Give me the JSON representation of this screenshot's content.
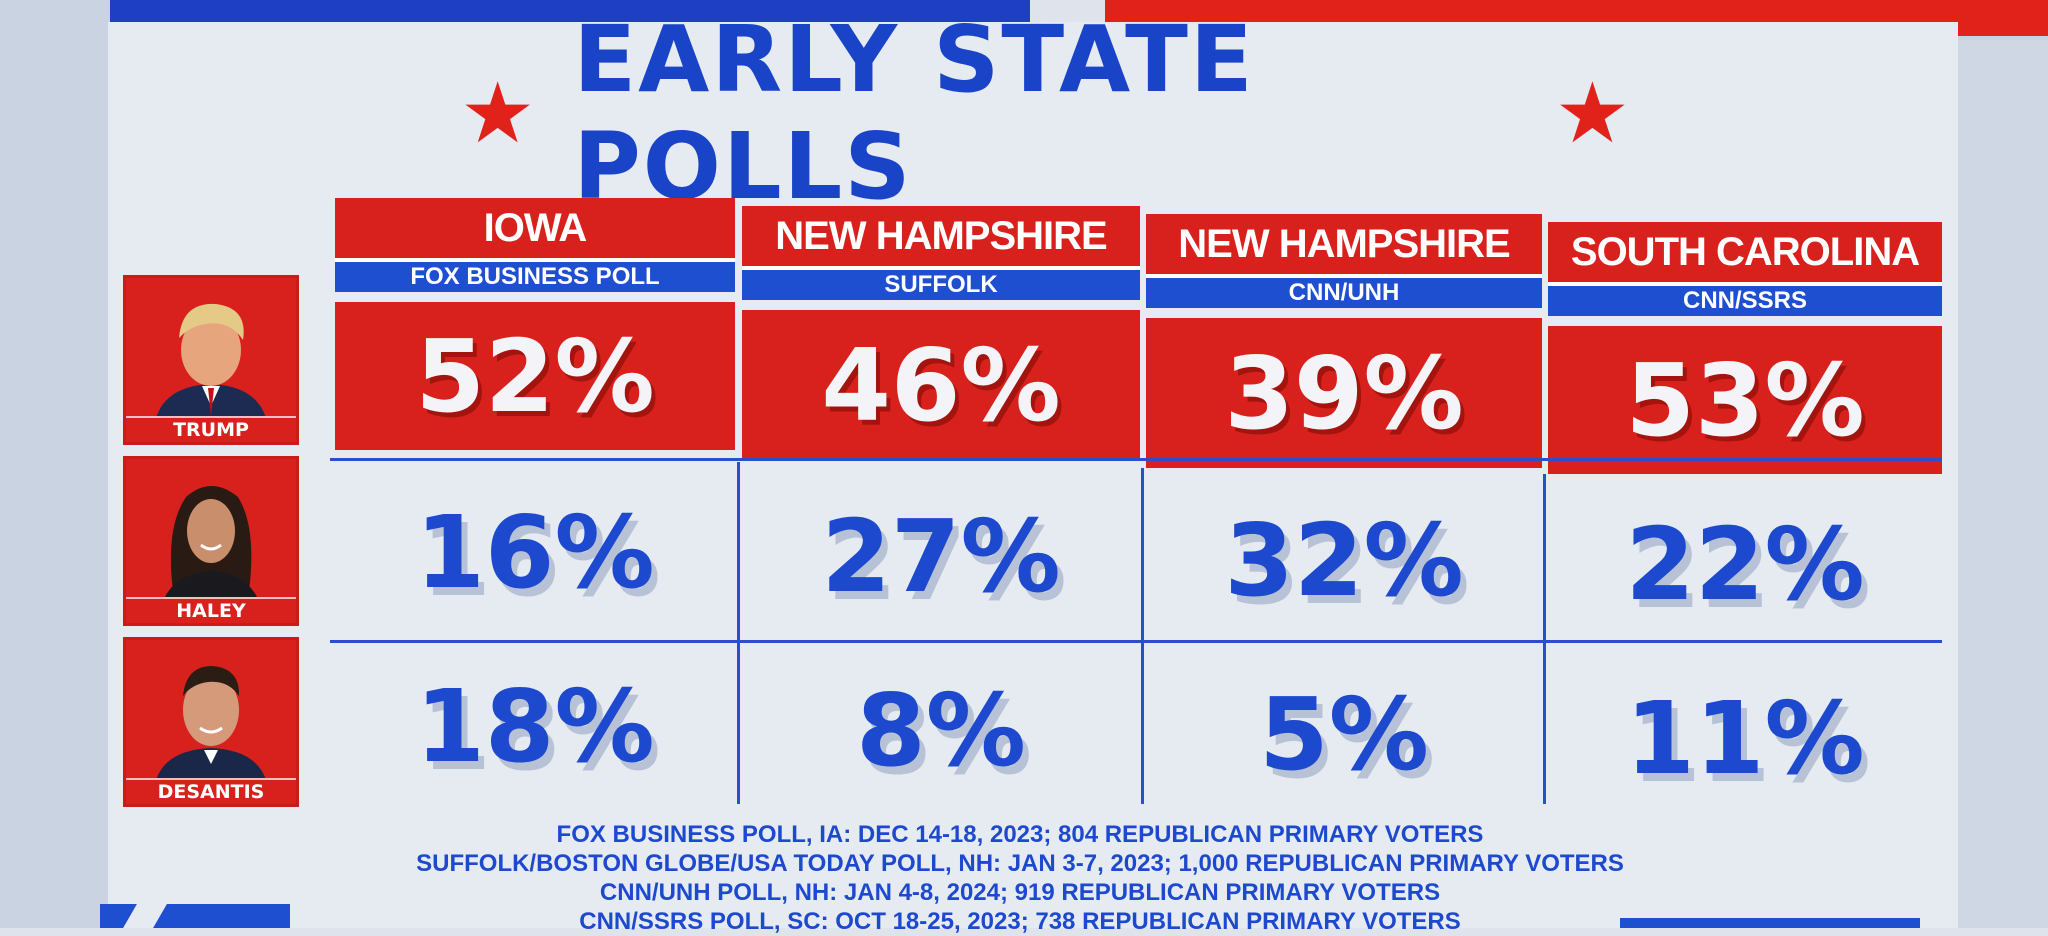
{
  "title": "EARLY STATE POLLS",
  "candidates": [
    {
      "name": "TRUMP"
    },
    {
      "name": "HALEY"
    },
    {
      "name": "DESANTIS"
    }
  ],
  "columns": [
    {
      "state": "IOWA",
      "poll": "FOX BUSINESS POLL"
    },
    {
      "state": "NEW HAMPSHIRE",
      "poll": "SUFFOLK"
    },
    {
      "state": "NEW HAMPSHIRE",
      "poll": "CNN/UNH"
    },
    {
      "state": "SOUTH CAROLINA",
      "poll": "CNN/SSRS"
    }
  ],
  "rows": [
    [
      "52%",
      "46%",
      "39%",
      "53%"
    ],
    [
      "16%",
      "27%",
      "32%",
      "22%"
    ],
    [
      "18%",
      "8%",
      "5%",
      "11%"
    ]
  ],
  "footnotes": [
    "FOX BUSINESS POLL, IA: DEC 14-18, 2023; 804 REPUBLICAN PRIMARY VOTERS",
    "SUFFOLK/BOSTON GLOBE/USA TODAY POLL, NH: JAN 3-7, 2023; 1,000 REPUBLICAN PRIMARY VOTERS",
    "CNN/UNH POLL, NH: JAN 4-8, 2024; 919 REPUBLICAN PRIMARY VOTERS",
    "CNN/SSRS POLL, SC: OCT 18-25, 2023; 738 REPUBLICAN PRIMARY VOTERS"
  ],
  "colors": {
    "red": "#d8211c",
    "blue": "#1d49cf",
    "background": "#e6eaf1"
  },
  "chart_data": {
    "type": "table",
    "title": "EARLY STATE POLLS",
    "categories": [
      "IOWA (FOX BUSINESS POLL)",
      "NEW HAMPSHIRE (SUFFOLK)",
      "NEW HAMPSHIRE (CNN/UNH)",
      "SOUTH CAROLINA (CNN/SSRS)"
    ],
    "series": [
      {
        "name": "TRUMP",
        "values": [
          52,
          46,
          39,
          53
        ]
      },
      {
        "name": "HALEY",
        "values": [
          16,
          27,
          32,
          22
        ]
      },
      {
        "name": "DESANTIS",
        "values": [
          18,
          8,
          5,
          11
        ]
      }
    ],
    "unit": "%"
  }
}
